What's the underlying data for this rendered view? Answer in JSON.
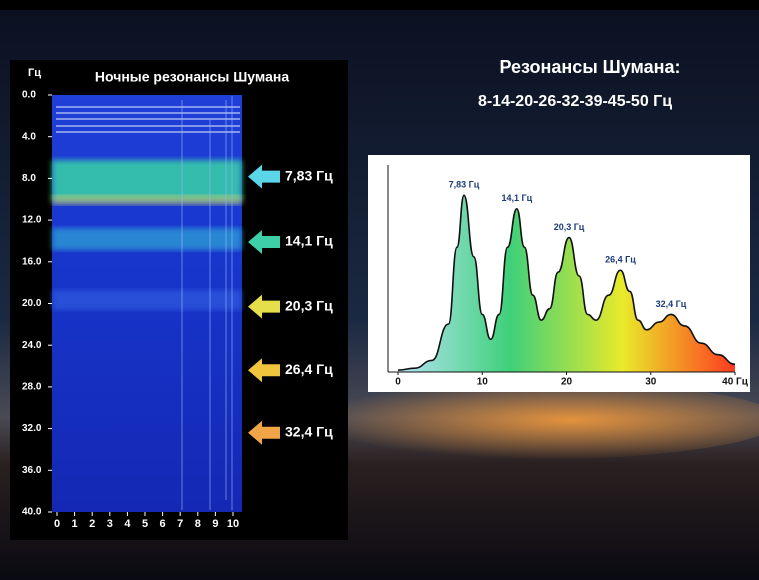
{
  "header": {
    "title": "Резонансы Шумана:",
    "subtitle": "8-14-20-26-32-39-45-50 Гц"
  },
  "chart_data": [
    {
      "type": "spectrogram",
      "title": "Ночные резонансы Шумана",
      "ylabel": "Гц",
      "ylim": [
        0,
        40
      ],
      "xlim": [
        0,
        10
      ],
      "yticks": [
        {
          "value": 0,
          "label": "0.0"
        },
        {
          "value": 4,
          "label": "4.0"
        },
        {
          "value": 8,
          "label": "8.0"
        },
        {
          "value": 12,
          "label": "12.0"
        },
        {
          "value": 16,
          "label": "16.0"
        },
        {
          "value": 20,
          "label": "20.0"
        },
        {
          "value": 24,
          "label": "24.0"
        },
        {
          "value": 28,
          "label": "28.0"
        },
        {
          "value": 32,
          "label": "32.0"
        },
        {
          "value": 36,
          "label": "36.0"
        },
        {
          "value": 40,
          "label": "40.0"
        }
      ],
      "xticks": [
        0,
        1,
        2,
        3,
        4,
        5,
        6,
        7,
        8,
        9,
        10
      ],
      "annotations": [
        {
          "value": 7.83,
          "label": "7,83 Гц",
          "color": "#5ad6e8"
        },
        {
          "value": 14.1,
          "label": "14,1 Гц",
          "color": "#3ecfa6"
        },
        {
          "value": 20.3,
          "label": "20,3 Гц",
          "color": "#e6df4c"
        },
        {
          "value": 26.4,
          "label": "26,4 Гц",
          "color": "#f0c43c"
        },
        {
          "value": 32.4,
          "label": "32,4 Гц",
          "color": "#efa548"
        }
      ]
    },
    {
      "type": "area",
      "x": [
        0,
        2,
        4,
        6,
        7,
        7.83,
        9,
        10,
        11,
        12,
        13,
        14.1,
        15,
        16,
        17,
        18,
        19,
        20.3,
        21.5,
        22.5,
        23.5,
        25,
        26.4,
        27.5,
        28.5,
        29.5,
        31,
        32.4,
        34,
        36,
        38,
        40
      ],
      "values": [
        1,
        2,
        6,
        25,
        65,
        92,
        60,
        30,
        17,
        30,
        65,
        85,
        65,
        40,
        27,
        33,
        52,
        70,
        50,
        30,
        27,
        40,
        53,
        42,
        27,
        22,
        26,
        30,
        24,
        15,
        9,
        4
      ],
      "fill_gradient": [
        "#b5e3f3",
        "#3fd07a",
        "#e8ea2a",
        "#ff3a20"
      ],
      "xlim": [
        0,
        40
      ],
      "ylim": [
        0,
        100
      ],
      "xticks": [
        0,
        10,
        20,
        30,
        {
          "value": 40,
          "label": "40 Гц"
        }
      ],
      "annotations": [
        {
          "value": 7.83,
          "label": "7,83 Гц"
        },
        {
          "value": 14.1,
          "label": "14,1 Гц"
        },
        {
          "value": 20.3,
          "label": "20,3 Гц"
        },
        {
          "value": 26.4,
          "label": "26,4 Гц"
        },
        {
          "value": 32.4,
          "label": "32,4 Гц"
        }
      ]
    }
  ]
}
